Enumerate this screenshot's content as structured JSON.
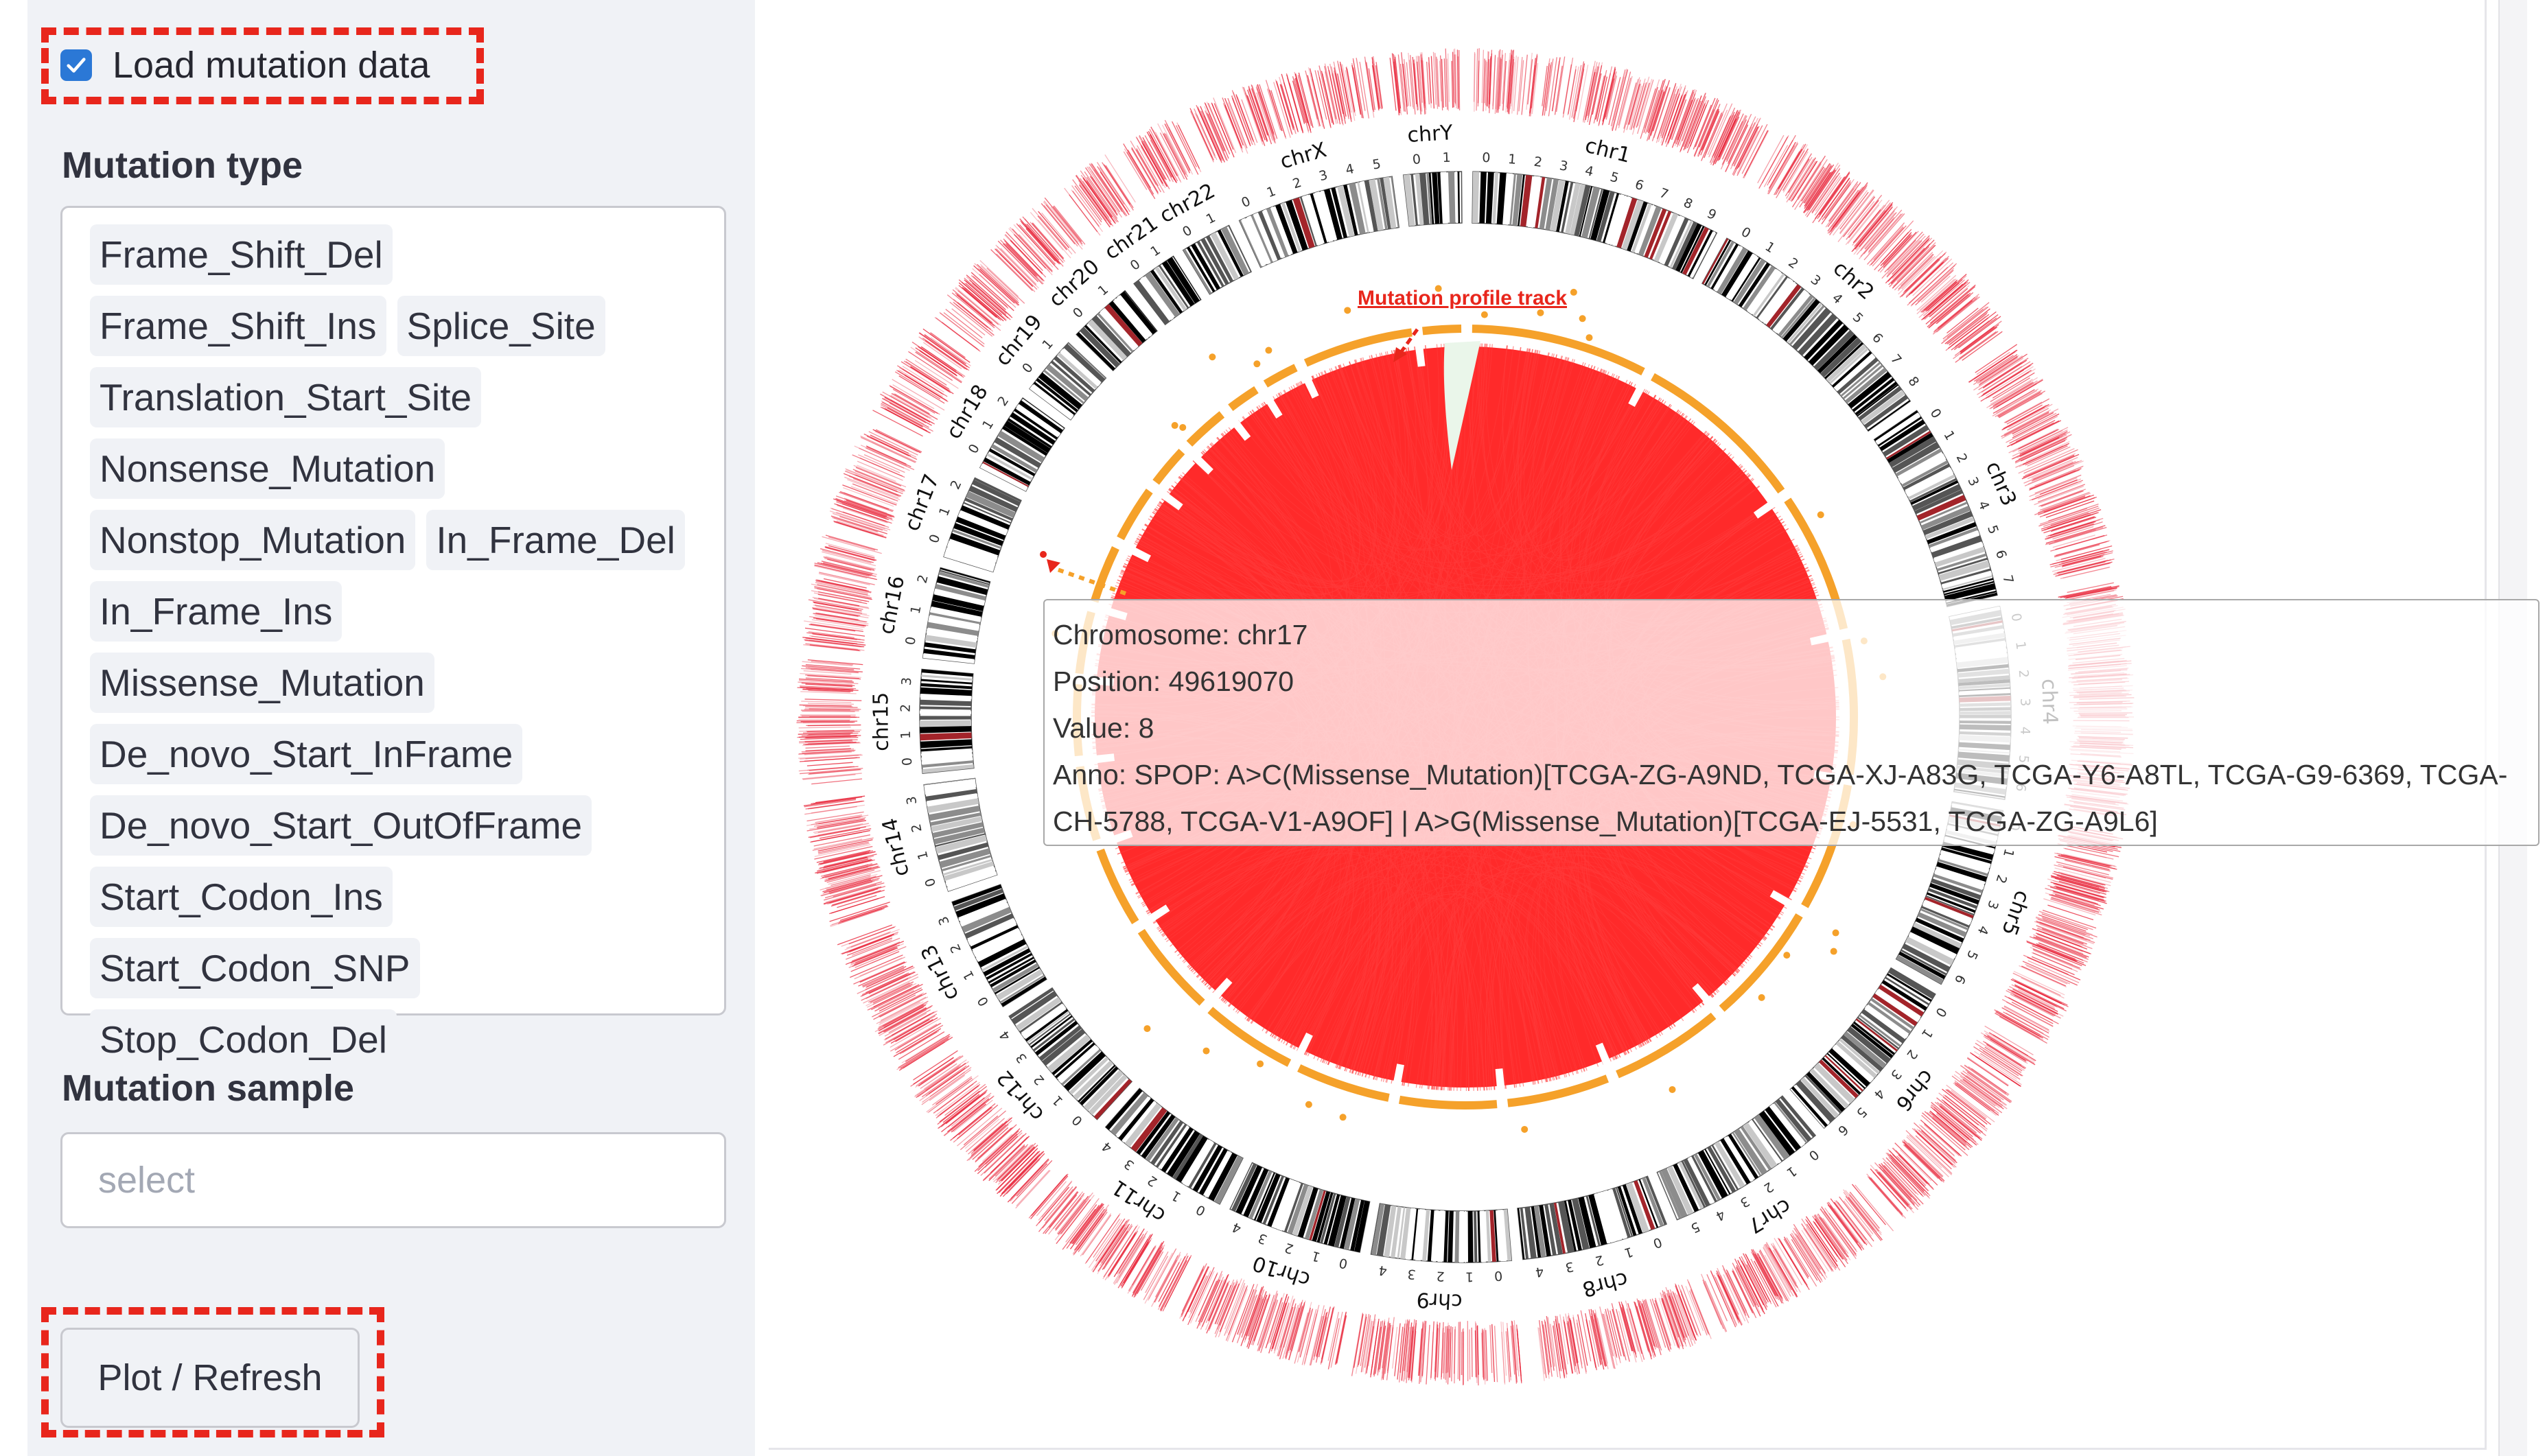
{
  "sidebar": {
    "load_mutation_label": "Load mutation data",
    "load_mutation_checked": true,
    "mutation_type_title": "Mutation type",
    "mutation_types": [
      "Frame_Shift_Del",
      "Frame_Shift_Ins",
      "Splice_Site",
      "Translation_Start_Site",
      "Nonsense_Mutation",
      "Nonstop_Mutation",
      "In_Frame_Del",
      "In_Frame_Ins",
      "Missense_Mutation",
      "De_novo_Start_InFrame",
      "De_novo_Start_OutOfFrame",
      "Start_Codon_Ins",
      "Start_Codon_SNP",
      "Stop_Codon_Del"
    ],
    "mutation_sample_title": "Mutation sample",
    "mutation_sample_placeholder": "select",
    "plot_button_label": "Plot / Refresh"
  },
  "plot": {
    "track_label": "Mutation profile track",
    "chromosomes": [
      "chr1",
      "chr2",
      "chr3",
      "chr4",
      "chr5",
      "chr6",
      "chr7",
      "chr8",
      "chr9",
      "chr10",
      "chr11",
      "chr12",
      "chr13",
      "chr14",
      "chr15",
      "chr16",
      "chr17",
      "chr18",
      "chr19",
      "chr20",
      "chr21",
      "chr22",
      "chrX",
      "chrY"
    ],
    "colors": {
      "link": "#ff1a1a",
      "track": "#f5a12a",
      "annotation": "#e8261c",
      "accent": "#2b78d6"
    }
  },
  "tooltip": {
    "chromosome": "Chromosome: chr17",
    "position": "Position: 49619070",
    "value": "Value: 8",
    "anno_line1": "Anno: SPOP: A>C(Missense_Mutation)[TCGA-ZG-A9ND, TCGA-XJ-A83G, TCGA-Y6-A8TL, TCGA-G9-6369, TCGA-",
    "anno_line2": "CH-5788, TCGA-V1-A9OF] | A>G(Missense_Mutation)[TCGA-EJ-5531, TCGA-ZG-A9L6]"
  }
}
